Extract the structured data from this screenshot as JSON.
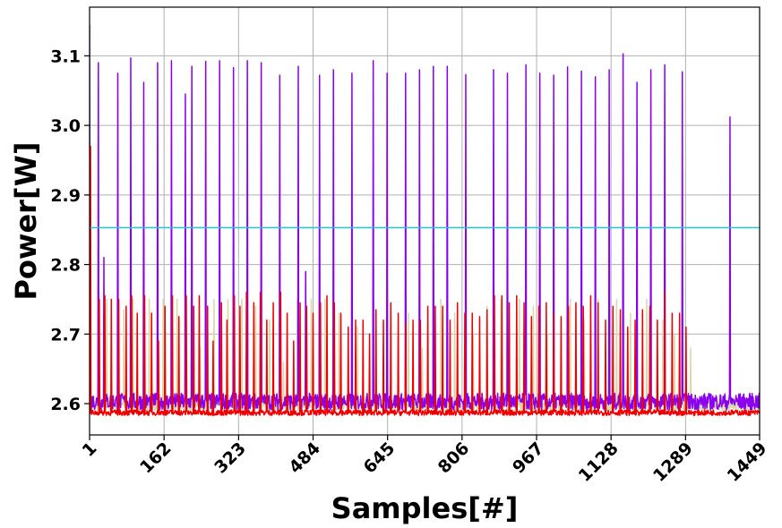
{
  "chart_data": {
    "type": "line",
    "title": "",
    "xlabel": "Samples[#]",
    "ylabel": "Power[W]",
    "xlim": [
      1,
      1449
    ],
    "ylim": [
      2.555,
      3.17
    ],
    "x_ticks": [
      1,
      162,
      323,
      484,
      645,
      806,
      967,
      1128,
      1289,
      1449
    ],
    "y_ticks": [
      2.6,
      2.7,
      2.8,
      2.9,
      3.0,
      3.1
    ],
    "y_tick_labels": [
      "2.6",
      "2.7",
      "2.8",
      "2.9",
      "3.0",
      "3.1"
    ],
    "grid": true,
    "legend": "none",
    "reference_line": {
      "y": 2.853,
      "color": "#20c8d0"
    },
    "series": [
      {
        "color": "#8a00ee",
        "baseline": 2.603,
        "baseline_noise": 0.012,
        "spikes": [
          {
            "x": 1,
            "y": 3.145
          },
          {
            "x": 20,
            "y": 3.09
          },
          {
            "x": 32,
            "y": 2.81
          },
          {
            "x": 62,
            "y": 3.075
          },
          {
            "x": 90,
            "y": 3.097
          },
          {
            "x": 118,
            "y": 3.062
          },
          {
            "x": 148,
            "y": 3.09
          },
          {
            "x": 178,
            "y": 3.093
          },
          {
            "x": 208,
            "y": 3.045
          },
          {
            "x": 222,
            "y": 3.085
          },
          {
            "x": 252,
            "y": 3.092
          },
          {
            "x": 282,
            "y": 3.093
          },
          {
            "x": 312,
            "y": 3.083
          },
          {
            "x": 342,
            "y": 3.093
          },
          {
            "x": 372,
            "y": 3.09
          },
          {
            "x": 412,
            "y": 3.072
          },
          {
            "x": 452,
            "y": 3.085
          },
          {
            "x": 468,
            "y": 2.79
          },
          {
            "x": 498,
            "y": 3.072
          },
          {
            "x": 528,
            "y": 3.08
          },
          {
            "x": 568,
            "y": 3.075
          },
          {
            "x": 614,
            "y": 3.093
          },
          {
            "x": 644,
            "y": 3.075
          },
          {
            "x": 684,
            "y": 3.075
          },
          {
            "x": 714,
            "y": 3.08
          },
          {
            "x": 744,
            "y": 3.085
          },
          {
            "x": 774,
            "y": 3.085
          },
          {
            "x": 814,
            "y": 3.073
          },
          {
            "x": 874,
            "y": 3.08
          },
          {
            "x": 904,
            "y": 3.075
          },
          {
            "x": 944,
            "y": 3.087
          },
          {
            "x": 974,
            "y": 3.075
          },
          {
            "x": 1004,
            "y": 3.072
          },
          {
            "x": 1034,
            "y": 3.084
          },
          {
            "x": 1064,
            "y": 3.078
          },
          {
            "x": 1094,
            "y": 3.07
          },
          {
            "x": 1124,
            "y": 3.08
          },
          {
            "x": 1154,
            "y": 3.103
          },
          {
            "x": 1184,
            "y": 3.062
          },
          {
            "x": 1214,
            "y": 3.08
          },
          {
            "x": 1244,
            "y": 3.087
          },
          {
            "x": 1282,
            "y": 3.077
          },
          {
            "x": 1385,
            "y": 3.012
          }
        ]
      },
      {
        "color": "#d8d8a8",
        "baseline": 2.598,
        "baseline_noise": 0.008,
        "spikes": [
          {
            "x": 38,
            "y": 2.75
          },
          {
            "x": 75,
            "y": 2.735
          },
          {
            "x": 95,
            "y": 2.75
          },
          {
            "x": 130,
            "y": 2.75
          },
          {
            "x": 160,
            "y": 2.75
          },
          {
            "x": 190,
            "y": 2.75
          },
          {
            "x": 220,
            "y": 2.75
          },
          {
            "x": 240,
            "y": 2.68
          },
          {
            "x": 270,
            "y": 2.75
          },
          {
            "x": 300,
            "y": 2.75
          },
          {
            "x": 330,
            "y": 2.75
          },
          {
            "x": 360,
            "y": 2.74
          },
          {
            "x": 390,
            "y": 2.72
          },
          {
            "x": 420,
            "y": 2.66
          },
          {
            "x": 450,
            "y": 2.75
          },
          {
            "x": 480,
            "y": 2.75
          },
          {
            "x": 510,
            "y": 2.75
          },
          {
            "x": 540,
            "y": 2.73
          },
          {
            "x": 580,
            "y": 2.71
          },
          {
            "x": 615,
            "y": 2.75
          },
          {
            "x": 645,
            "y": 2.75
          },
          {
            "x": 690,
            "y": 2.73
          },
          {
            "x": 720,
            "y": 2.68
          },
          {
            "x": 760,
            "y": 2.75
          },
          {
            "x": 790,
            "y": 2.73
          },
          {
            "x": 830,
            "y": 2.7
          },
          {
            "x": 860,
            "y": 2.74
          },
          {
            "x": 890,
            "y": 2.75
          },
          {
            "x": 930,
            "y": 2.75
          },
          {
            "x": 960,
            "y": 2.74
          },
          {
            "x": 990,
            "y": 2.7
          },
          {
            "x": 1040,
            "y": 2.75
          },
          {
            "x": 1070,
            "y": 2.72
          },
          {
            "x": 1100,
            "y": 2.75
          },
          {
            "x": 1140,
            "y": 2.75
          },
          {
            "x": 1170,
            "y": 2.73
          },
          {
            "x": 1205,
            "y": 2.75
          },
          {
            "x": 1240,
            "y": 2.72
          },
          {
            "x": 1265,
            "y": 2.7
          },
          {
            "x": 1300,
            "y": 2.68
          }
        ]
      },
      {
        "color": "#ee0000",
        "baseline": 2.587,
        "baseline_noise": 0.004,
        "spikes": [
          {
            "x": 3,
            "y": 2.97
          },
          {
            "x": 22,
            "y": 2.75
          },
          {
            "x": 34,
            "y": 2.755
          },
          {
            "x": 48,
            "y": 2.75
          },
          {
            "x": 64,
            "y": 2.75
          },
          {
            "x": 80,
            "y": 2.74
          },
          {
            "x": 92,
            "y": 2.755
          },
          {
            "x": 104,
            "y": 2.73
          },
          {
            "x": 120,
            "y": 2.755
          },
          {
            "x": 135,
            "y": 2.73
          },
          {
            "x": 150,
            "y": 2.69
          },
          {
            "x": 164,
            "y": 2.74
          },
          {
            "x": 180,
            "y": 2.755
          },
          {
            "x": 194,
            "y": 2.725
          },
          {
            "x": 210,
            "y": 2.755
          },
          {
            "x": 226,
            "y": 2.74
          },
          {
            "x": 238,
            "y": 2.755
          },
          {
            "x": 256,
            "y": 2.74
          },
          {
            "x": 268,
            "y": 2.69
          },
          {
            "x": 286,
            "y": 2.745
          },
          {
            "x": 298,
            "y": 2.72
          },
          {
            "x": 314,
            "y": 2.755
          },
          {
            "x": 326,
            "y": 2.74
          },
          {
            "x": 340,
            "y": 2.76
          },
          {
            "x": 356,
            "y": 2.745
          },
          {
            "x": 370,
            "y": 2.76
          },
          {
            "x": 384,
            "y": 2.72
          },
          {
            "x": 398,
            "y": 2.745
          },
          {
            "x": 414,
            "y": 2.76
          },
          {
            "x": 428,
            "y": 2.73
          },
          {
            "x": 442,
            "y": 2.69
          },
          {
            "x": 456,
            "y": 2.745
          },
          {
            "x": 470,
            "y": 2.74
          },
          {
            "x": 484,
            "y": 2.73
          },
          {
            "x": 500,
            "y": 2.745
          },
          {
            "x": 514,
            "y": 2.755
          },
          {
            "x": 530,
            "y": 2.745
          },
          {
            "x": 544,
            "y": 2.73
          },
          {
            "x": 560,
            "y": 2.71
          },
          {
            "x": 576,
            "y": 2.72
          },
          {
            "x": 592,
            "y": 2.72
          },
          {
            "x": 606,
            "y": 2.7
          },
          {
            "x": 620,
            "y": 2.735
          },
          {
            "x": 636,
            "y": 2.72
          },
          {
            "x": 652,
            "y": 2.745
          },
          {
            "x": 668,
            "y": 2.73
          },
          {
            "x": 684,
            "y": 2.715
          },
          {
            "x": 700,
            "y": 2.72
          },
          {
            "x": 716,
            "y": 2.72
          },
          {
            "x": 732,
            "y": 2.74
          },
          {
            "x": 748,
            "y": 2.74
          },
          {
            "x": 764,
            "y": 2.74
          },
          {
            "x": 780,
            "y": 2.72
          },
          {
            "x": 796,
            "y": 2.745
          },
          {
            "x": 812,
            "y": 2.73
          },
          {
            "x": 828,
            "y": 2.73
          },
          {
            "x": 844,
            "y": 2.725
          },
          {
            "x": 860,
            "y": 2.735
          },
          {
            "x": 876,
            "y": 2.755
          },
          {
            "x": 892,
            "y": 2.755
          },
          {
            "x": 908,
            "y": 2.745
          },
          {
            "x": 924,
            "y": 2.755
          },
          {
            "x": 940,
            "y": 2.745
          },
          {
            "x": 956,
            "y": 2.725
          },
          {
            "x": 972,
            "y": 2.74
          },
          {
            "x": 988,
            "y": 2.745
          },
          {
            "x": 1004,
            "y": 2.73
          },
          {
            "x": 1020,
            "y": 2.725
          },
          {
            "x": 1036,
            "y": 2.74
          },
          {
            "x": 1052,
            "y": 2.745
          },
          {
            "x": 1068,
            "y": 2.74
          },
          {
            "x": 1084,
            "y": 2.755
          },
          {
            "x": 1100,
            "y": 2.745
          },
          {
            "x": 1116,
            "y": 2.72
          },
          {
            "x": 1132,
            "y": 2.74
          },
          {
            "x": 1148,
            "y": 2.735
          },
          {
            "x": 1164,
            "y": 2.71
          },
          {
            "x": 1180,
            "y": 2.72
          },
          {
            "x": 1196,
            "y": 2.735
          },
          {
            "x": 1212,
            "y": 2.74
          },
          {
            "x": 1228,
            "y": 2.72
          },
          {
            "x": 1244,
            "y": 2.76
          },
          {
            "x": 1260,
            "y": 2.73
          },
          {
            "x": 1276,
            "y": 2.73
          },
          {
            "x": 1290,
            "y": 2.71
          }
        ]
      }
    ]
  }
}
